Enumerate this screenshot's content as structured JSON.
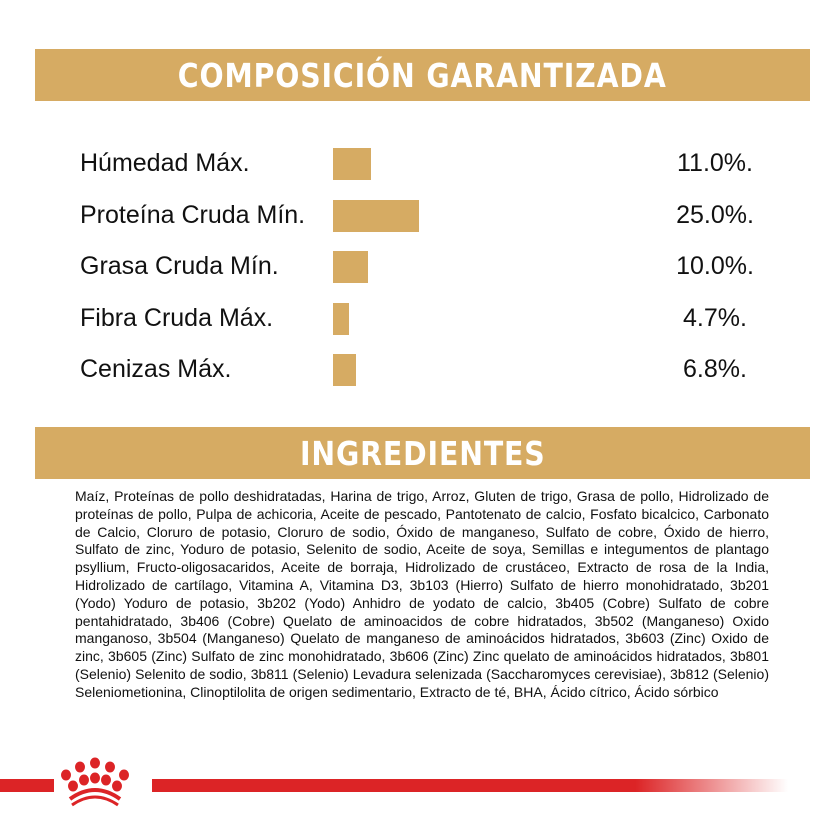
{
  "composition": {
    "title": "COMPOSICIÓN GARANTIZADA",
    "rows": [
      {
        "label": "Húmedad Máx.",
        "value": "11.0%.",
        "percent": 11.0
      },
      {
        "label": "Proteína Cruda Mín.",
        "value": "25.0%.",
        "percent": 25.0
      },
      {
        "label": "Grasa Cruda Mín.",
        "value": "10.0%.",
        "percent": 10.0
      },
      {
        "label": "Fibra Cruda Máx.",
        "value": "4.7%.",
        "percent": 4.7
      },
      {
        "label": "Cenizas Máx.",
        "value": "6.8%.",
        "percent": 6.8
      }
    ]
  },
  "ingredients": {
    "title": "INGREDIENTES",
    "text": "Maíz, Proteínas de pollo deshidratadas, Harina de trigo, Arroz, Gluten de trigo, Grasa de pollo, Hidrolizado de proteínas de pollo, Pulpa de achicoria, Aceite de pescado, Pantotenato de calcio, Fosfato bicalcico, Carbonato de Calcio, Cloruro de potasio, Cloruro de sodio, Óxido de manganeso, Sulfato de cobre, Óxido de hierro, Sulfato de zinc, Yoduro de potasio, Selenito de sodio, Aceite de soya, Semillas e integumentos de plantago psyllium, Fructo-oligosacaridos, Aceite de borraja, Hidrolizado de crustáceo, Extracto de rosa de la India, Hidrolizado de cartílago, Vitamina A, Vitamina D3, 3b103 (Hierro) Sulfato de hierro monohidratado, 3b201 (Yodo) Yoduro de potasio, 3b202 (Yodo) Anhidro de yodato de calcio, 3b405 (Cobre) Sulfato de cobre pentahidratado, 3b406 (Cobre) Quelato de aminoacidos de cobre hidratados, 3b502 (Manganeso) Oxido manganoso, 3b504 (Manganeso) Quelato de manganeso de aminoácidos hidratados, 3b603 (Zinc) Oxido de zinc, 3b605 (Zinc) Sulfato de zinc monohidratado, 3b606 (Zinc)  Zinc quelato de aminoácidos hidratados, 3b801 (Selenio) Selenito de sodio, 3b811 (Selenio) Levadura selenizada (Saccharomyces cerevisiae), 3b812 (Selenio) Seleniometionina, Clinoptilolita de origen sedimentario, Extracto de té, BHA, Ácido cítrico, Ácido sórbico"
  },
  "footer": {
    "logo_icon": "royal-canin-crown-icon"
  },
  "colors": {
    "accent_gold": "#D6AB63",
    "brand_red": "#DC2426",
    "text": "#111111"
  },
  "chart_data": {
    "type": "bar",
    "orientation": "horizontal",
    "title": "COMPOSICIÓN GARANTIZADA",
    "categories": [
      "Húmedad Máx.",
      "Proteína Cruda Mín.",
      "Grasa Cruda Mín.",
      "Fibra Cruda Máx.",
      "Cenizas Máx."
    ],
    "values": [
      11.0,
      25.0,
      10.0,
      4.7,
      6.8
    ],
    "value_labels": [
      "11.0%.",
      "25.0%.",
      "10.0%.",
      "4.7%.",
      "6.8%."
    ],
    "xlabel": "",
    "ylabel": "",
    "unit": "%",
    "grid": false,
    "legend": "none",
    "bar_color": "#D6AB63"
  }
}
